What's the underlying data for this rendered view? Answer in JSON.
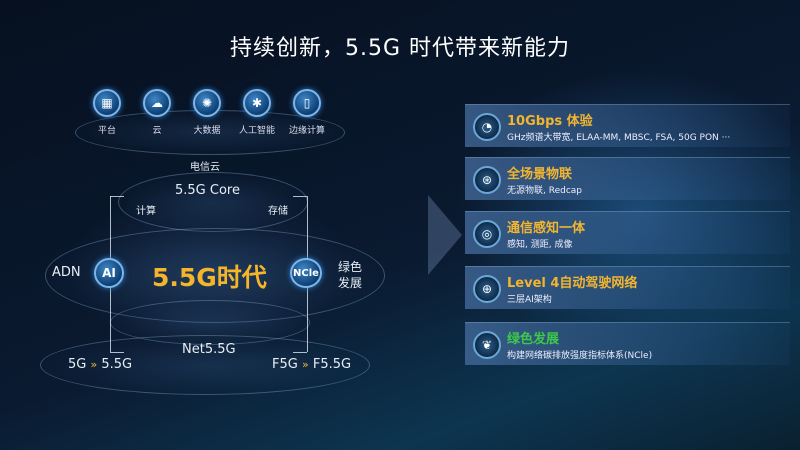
{
  "title": "持续创新，5.5G 时代带来新能力",
  "top_icons": [
    {
      "label": "平台",
      "icon": "platform-icon",
      "glyph": "▦"
    },
    {
      "label": "云",
      "icon": "cloud-icon",
      "glyph": "☁"
    },
    {
      "label": "大数据",
      "icon": "big-data-icon",
      "glyph": "✺"
    },
    {
      "label": "人工智能",
      "icon": "ai-chip-icon",
      "glyph": "✱"
    },
    {
      "label": "边缘计算",
      "icon": "edge-computing-icon",
      "glyph": "▯"
    }
  ],
  "diagram": {
    "cloud": "电信云",
    "core": "5.5G Core",
    "compute": "计算",
    "storage": "存储",
    "center": "5.5G时代",
    "ai": "AI",
    "ncle": "NCle",
    "adn": "ADN",
    "green1": "绿色",
    "green2": "发展",
    "net": "Net5.5G",
    "left_from": "5G",
    "left_to": "5.5G",
    "right_from": "F5G",
    "right_to": "F5.5G",
    "chevron": "»"
  },
  "features": [
    {
      "title": "10Gbps 体验",
      "desc": "GHz频谱大带宽, ELAA-MM, MBSC, FSA, 50G PON ···",
      "icon": "speed-gauge-icon",
      "glyph": "◔",
      "color": "#f2b530"
    },
    {
      "title": "全场景物联",
      "desc": "无源物联, Redcap",
      "icon": "iot-network-icon",
      "glyph": "⊛",
      "color": "#f2b530"
    },
    {
      "title": "通信感知一体",
      "desc": "感知, 测距, 成像",
      "icon": "sensing-icon",
      "glyph": "◎",
      "color": "#f2b530"
    },
    {
      "title": "Level 4自动驾驶网络",
      "desc": "三层AI架构",
      "icon": "globe-network-icon",
      "glyph": "⊕",
      "color": "#f2b530"
    },
    {
      "title": "绿色发展",
      "desc": "构建网络碳排放强度指标体系(NCle)",
      "icon": "leaf-icon",
      "glyph": "❦",
      "color": "#3cc84a"
    }
  ]
}
